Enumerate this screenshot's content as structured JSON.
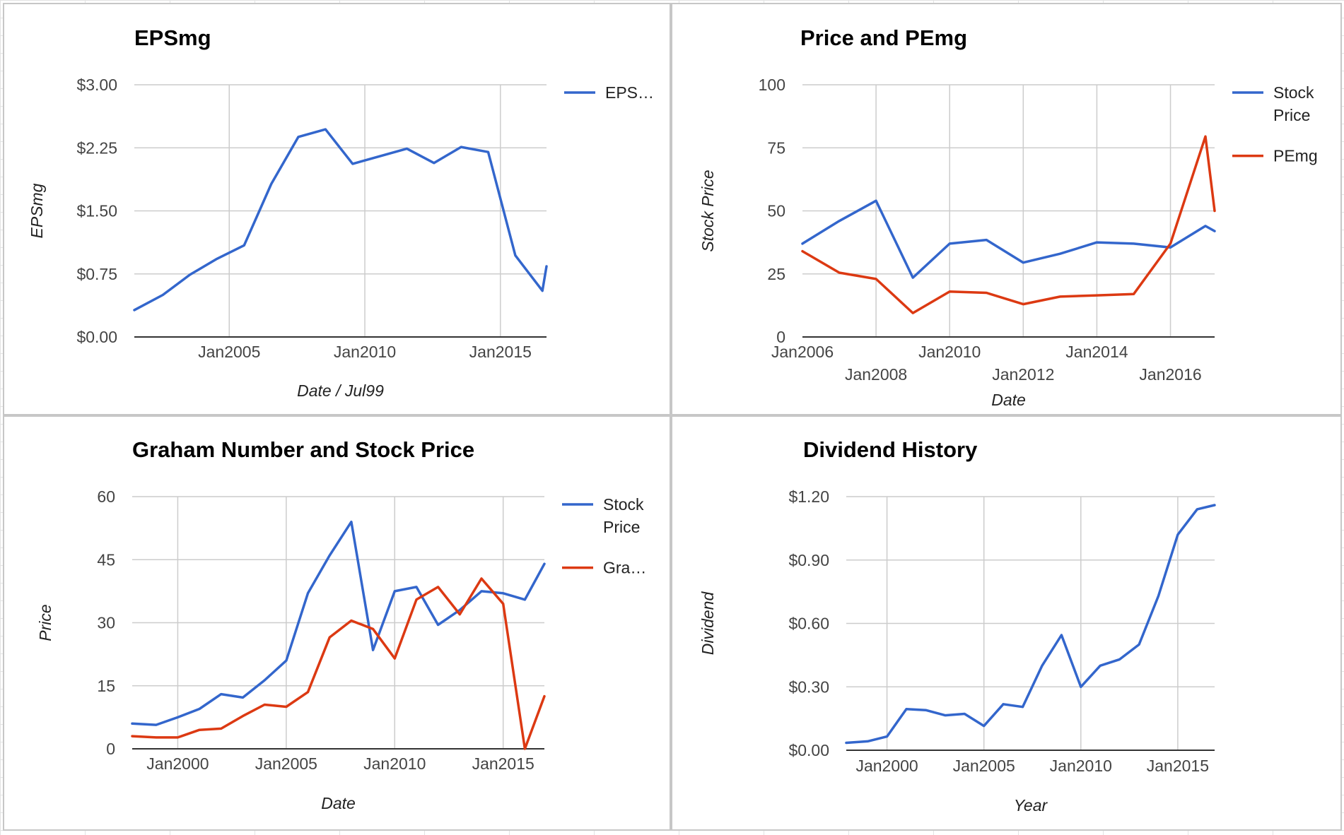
{
  "chart_data": [
    {
      "type": "line",
      "title": "EPSmg",
      "xlabel": "Date / Jul99",
      "ylabel": "EPSmg",
      "xlim": [
        2001.5,
        2016.7
      ],
      "ylim": [
        0,
        3
      ],
      "x_ticks": [
        {
          "value": 2005,
          "label": "Jan2005"
        },
        {
          "value": 2010,
          "label": "Jan2010"
        },
        {
          "value": 2015,
          "label": "Jan2015"
        }
      ],
      "y_ticks": [
        {
          "value": 0,
          "label": "$0.00"
        },
        {
          "value": 0.75,
          "label": "$0.75"
        },
        {
          "value": 1.5,
          "label": "$1.50"
        },
        {
          "value": 2.25,
          "label": "$2.25"
        },
        {
          "value": 3,
          "label": "$3.00"
        }
      ],
      "grid": true,
      "legend": "right",
      "series": [
        {
          "name": "EPS…",
          "color": "#3366cc",
          "x": [
            2001.5,
            2002.55,
            2003.55,
            2004.55,
            2005.55,
            2006.55,
            2007.55,
            2008.55,
            2009.55,
            2010.55,
            2011.55,
            2012.55,
            2013.55,
            2014.55,
            2015.55,
            2016.55,
            2016.7
          ],
          "y": [
            0.32,
            0.5,
            0.74,
            0.93,
            1.09,
            1.82,
            2.38,
            2.47,
            2.06,
            2.15,
            2.24,
            2.07,
            2.26,
            2.2,
            0.97,
            0.55,
            0.84
          ]
        }
      ]
    },
    {
      "type": "line",
      "title": "Price and PEmg",
      "xlabel": "Date",
      "ylabel": "Stock Price",
      "xlim": [
        2006.0,
        2017.2
      ],
      "ylim": [
        0,
        100
      ],
      "x_ticks": [
        {
          "value": 2006,
          "label": "Jan2006",
          "row": 0
        },
        {
          "value": 2008,
          "label": "Jan2008",
          "row": 1
        },
        {
          "value": 2010,
          "label": "Jan2010",
          "row": 0
        },
        {
          "value": 2012,
          "label": "Jan2012",
          "row": 1
        },
        {
          "value": 2014,
          "label": "Jan2014",
          "row": 0
        },
        {
          "value": 2016,
          "label": "Jan2016",
          "row": 1
        }
      ],
      "y_ticks": [
        {
          "value": 0,
          "label": "0"
        },
        {
          "value": 25,
          "label": "25"
        },
        {
          "value": 50,
          "label": "50"
        },
        {
          "value": 75,
          "label": "75"
        },
        {
          "value": 100,
          "label": "100"
        }
      ],
      "grid": true,
      "legend": "right",
      "series": [
        {
          "name": "Stock Price",
          "color": "#3366cc",
          "x": [
            2006.0,
            2007.0,
            2008.0,
            2009.0,
            2010.0,
            2011.0,
            2012.0,
            2013.0,
            2014.0,
            2015.0,
            2016.0,
            2016.95,
            2017.2
          ],
          "y": [
            37,
            46,
            54,
            23.5,
            37,
            38.5,
            29.5,
            33,
            37.5,
            37,
            35.5,
            44,
            42
          ]
        },
        {
          "name": "PEmg",
          "color": "#dc3912",
          "x": [
            2006.0,
            2007.0,
            2008.0,
            2009.0,
            2010.0,
            2011.0,
            2012.0,
            2013.0,
            2014.0,
            2015.0,
            2016.0,
            2016.95,
            2017.2
          ],
          "y": [
            34,
            25.5,
            23,
            9.5,
            18,
            17.5,
            13,
            16,
            16.5,
            17,
            37,
            79.5,
            50
          ]
        }
      ]
    },
    {
      "type": "line",
      "title": "Graham Number and Stock Price",
      "xlabel": "Date",
      "ylabel": "Price",
      "xlim": [
        1997.9,
        2016.9
      ],
      "ylim": [
        0,
        60
      ],
      "x_ticks": [
        {
          "value": 2000,
          "label": "Jan2000"
        },
        {
          "value": 2005,
          "label": "Jan2005"
        },
        {
          "value": 2010,
          "label": "Jan2010"
        },
        {
          "value": 2015,
          "label": "Jan2015"
        }
      ],
      "y_ticks": [
        {
          "value": 0,
          "label": "0"
        },
        {
          "value": 15,
          "label": "15"
        },
        {
          "value": 30,
          "label": "30"
        },
        {
          "value": 45,
          "label": "45"
        },
        {
          "value": 60,
          "label": "60"
        }
      ],
      "grid": true,
      "legend": "right",
      "series": [
        {
          "name": "Stock Price",
          "color": "#3366cc",
          "x": [
            1997.9,
            1999.0,
            2000.0,
            2001.0,
            2002.0,
            2003.0,
            2004.0,
            2005.0,
            2006.0,
            2007.0,
            2008.0,
            2009.0,
            2010.0,
            2011.0,
            2012.0,
            2013.0,
            2014.0,
            2015.0,
            2016.0,
            2016.9
          ],
          "y": [
            6,
            5.7,
            7.5,
            9.5,
            13,
            12.2,
            16.3,
            21,
            37,
            46,
            54,
            23.5,
            37.5,
            38.5,
            29.5,
            33,
            37.5,
            37,
            35.5,
            44
          ]
        },
        {
          "name": "Gra…",
          "color": "#dc3912",
          "x": [
            1997.9,
            1999.0,
            2000.0,
            2001.0,
            2002.0,
            2003.0,
            2004.0,
            2005.0,
            2006.0,
            2007.0,
            2008.0,
            2009.0,
            2010.0,
            2011.0,
            2012.0,
            2013.0,
            2014.0,
            2015.0,
            2016.0,
            2016.9
          ],
          "y": [
            3,
            2.7,
            2.7,
            4.5,
            4.8,
            7.8,
            10.5,
            10,
            13.5,
            26.5,
            30.5,
            28.5,
            21.5,
            35.5,
            38.5,
            32,
            40.5,
            34.5,
            0,
            12.5
          ]
        }
      ]
    },
    {
      "type": "line",
      "title": "Dividend History",
      "xlabel": "Year",
      "ylabel": "Dividend",
      "xlim": [
        1997.9,
        2016.9
      ],
      "ylim": [
        0,
        1.2
      ],
      "x_ticks": [
        {
          "value": 2000,
          "label": "Jan2000"
        },
        {
          "value": 2005,
          "label": "Jan2005"
        },
        {
          "value": 2010,
          "label": "Jan2010"
        },
        {
          "value": 2015,
          "label": "Jan2015"
        }
      ],
      "y_ticks": [
        {
          "value": 0,
          "label": "$0.00"
        },
        {
          "value": 0.3,
          "label": "$0.30"
        },
        {
          "value": 0.6,
          "label": "$0.60"
        },
        {
          "value": 0.9,
          "label": "$0.90"
        },
        {
          "value": 1.2,
          "label": "$1.20"
        }
      ],
      "grid": true,
      "legend": "none",
      "series": [
        {
          "name": "Dividend",
          "color": "#3366cc",
          "x": [
            1997.9,
            1999.0,
            2000.0,
            2001.0,
            2002.0,
            2003.0,
            2004.0,
            2005.0,
            2006.0,
            2007.0,
            2008.0,
            2009.0,
            2010.0,
            2011.0,
            2012.0,
            2013.0,
            2014.0,
            2015.0,
            2016.0,
            2016.9
          ],
          "y": [
            0.035,
            0.042,
            0.065,
            0.195,
            0.19,
            0.165,
            0.172,
            0.115,
            0.218,
            0.205,
            0.4,
            0.545,
            0.3,
            0.4,
            0.43,
            0.5,
            0.73,
            1.02,
            1.14,
            1.16
          ]
        }
      ]
    }
  ]
}
